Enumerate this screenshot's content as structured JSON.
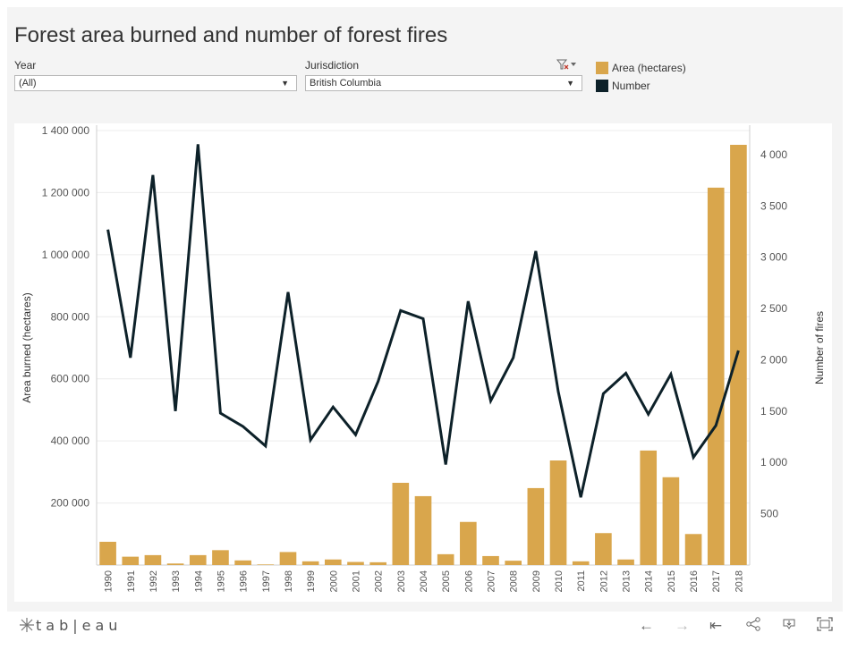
{
  "title": "Forest area burned and number of forest fires",
  "filters": {
    "year": {
      "label": "Year",
      "value": "(All)"
    },
    "jurisdiction": {
      "label": "Jurisdiction",
      "value": "British Columbia"
    }
  },
  "legend": [
    {
      "label": "Area (hectares)",
      "color": "#d9a64c"
    },
    {
      "label": "Number",
      "color": "#0d2129"
    }
  ],
  "chart_data": {
    "type": "bar",
    "categories": [
      "1990",
      "1991",
      "1992",
      "1993",
      "1994",
      "1995",
      "1996",
      "1997",
      "1998",
      "1999",
      "2000",
      "2001",
      "2002",
      "2003",
      "2004",
      "2005",
      "2006",
      "2007",
      "2008",
      "2009",
      "2010",
      "2011",
      "2012",
      "2013",
      "2014",
      "2015",
      "2016",
      "2017",
      "2018"
    ],
    "series": [
      {
        "name": "Area (hectares)",
        "type": "bar",
        "axis": "left",
        "color": "#d9a64c",
        "values": [
          75000,
          27000,
          32000,
          5000,
          32000,
          48000,
          15000,
          2000,
          42000,
          12000,
          18000,
          10000,
          9000,
          265000,
          222000,
          35000,
          139000,
          29000,
          14000,
          248000,
          337000,
          12000,
          103000,
          18000,
          369000,
          283000,
          100000,
          1216000,
          1354000
        ]
      },
      {
        "name": "Number",
        "type": "line",
        "axis": "right",
        "color": "#0d2129",
        "values": [
          3270,
          2020,
          3800,
          1500,
          4100,
          1480,
          1350,
          1160,
          2660,
          1220,
          1540,
          1270,
          1790,
          2480,
          2400,
          980,
          2570,
          1600,
          2020,
          3060,
          1690,
          660,
          1670,
          1870,
          1470,
          1860,
          1050,
          1360,
          2090
        ]
      }
    ],
    "ylabel": "Area burned (hectares)",
    "y2label": "Number of fires",
    "ylim": [
      0,
      1400000
    ],
    "y2lim": [
      0,
      4234
    ],
    "yticks": [
      200000,
      400000,
      600000,
      800000,
      1000000,
      1200000,
      1400000
    ],
    "yticklabels": [
      "200 000",
      "400 000",
      "600 000",
      "800 000",
      "1 000 000",
      "1 200 000",
      "1 400 000"
    ],
    "y2ticks": [
      500,
      1000,
      1500,
      2000,
      2500,
      3000,
      3500,
      4000
    ],
    "y2ticklabels": [
      "500",
      "1 000",
      "1 500",
      "2 000",
      "2 500",
      "3 000",
      "3 500",
      "4 000"
    ]
  },
  "footer": {
    "logo": "+ t a b | e a u",
    "icons": [
      "undo-icon",
      "redo-icon",
      "revert-icon",
      "share-icon",
      "download-icon",
      "fullscreen-icon"
    ]
  }
}
